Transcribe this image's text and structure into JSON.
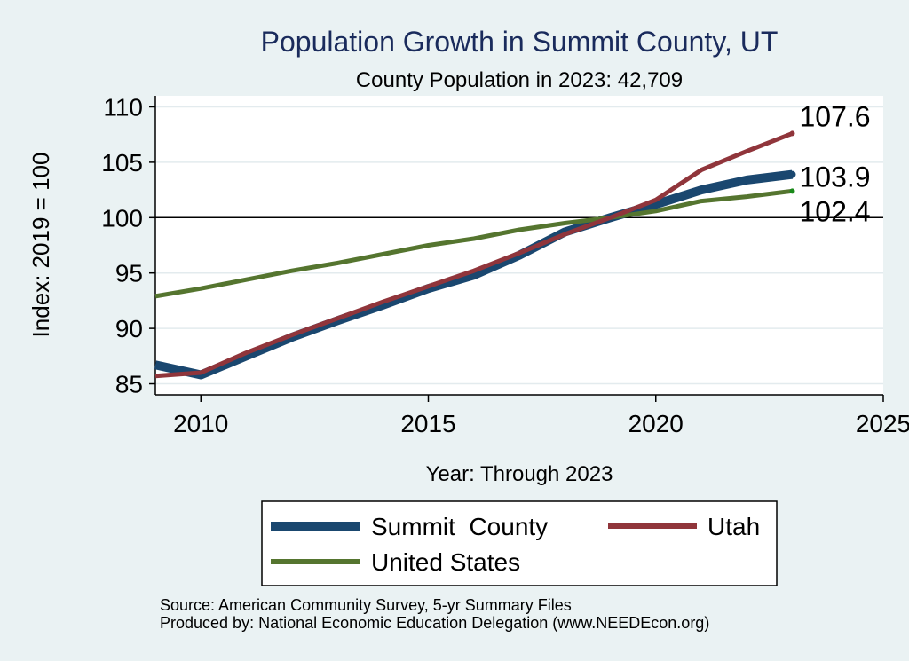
{
  "chart_data": {
    "type": "line",
    "title": "Population Growth in Summit County, UT",
    "subtitle": "County Population in 2023: 42,709",
    "xlabel": "Year: Through 2023",
    "ylabel": "Index: 2019 = 100",
    "xlim": [
      2009,
      2025
    ],
    "ylim": [
      84,
      111
    ],
    "xticks": [
      2010,
      2015,
      2020,
      2025
    ],
    "yticks": [
      85,
      90,
      95,
      100,
      105,
      110
    ],
    "reference_line": 100,
    "grid": true,
    "legend_position": "bottom",
    "x": [
      2009,
      2010,
      2011,
      2012,
      2013,
      2014,
      2015,
      2016,
      2017,
      2018,
      2019,
      2020,
      2021,
      2022,
      2023
    ],
    "series": [
      {
        "name": "Summit  County",
        "color": "#1a476f",
        "values": [
          86.7,
          85.8,
          87.5,
          89.2,
          90.7,
          92.1,
          93.6,
          94.8,
          96.6,
          98.7,
          100.0,
          101.2,
          102.5,
          103.4,
          103.9
        ],
        "end_label": "103.9"
      },
      {
        "name": "Utah",
        "color": "#90353b",
        "values": [
          85.7,
          86.0,
          87.8,
          89.4,
          90.9,
          92.4,
          93.8,
          95.2,
          96.8,
          98.5,
          100.0,
          101.6,
          104.3,
          106.0,
          107.6
        ],
        "end_label": "107.6"
      },
      {
        "name": "United States",
        "color": "#55752f",
        "values": [
          92.9,
          93.6,
          94.4,
          95.2,
          95.9,
          96.7,
          97.5,
          98.1,
          98.9,
          99.5,
          100.0,
          100.6,
          101.5,
          101.9,
          102.4
        ],
        "end_label": "102.4"
      }
    ],
    "source_lines": [
      "Source: American Community Survey, 5-yr Summary Files",
      "Produced by: National Economic Education Delegation (www.NEEDEcon.org)"
    ]
  }
}
